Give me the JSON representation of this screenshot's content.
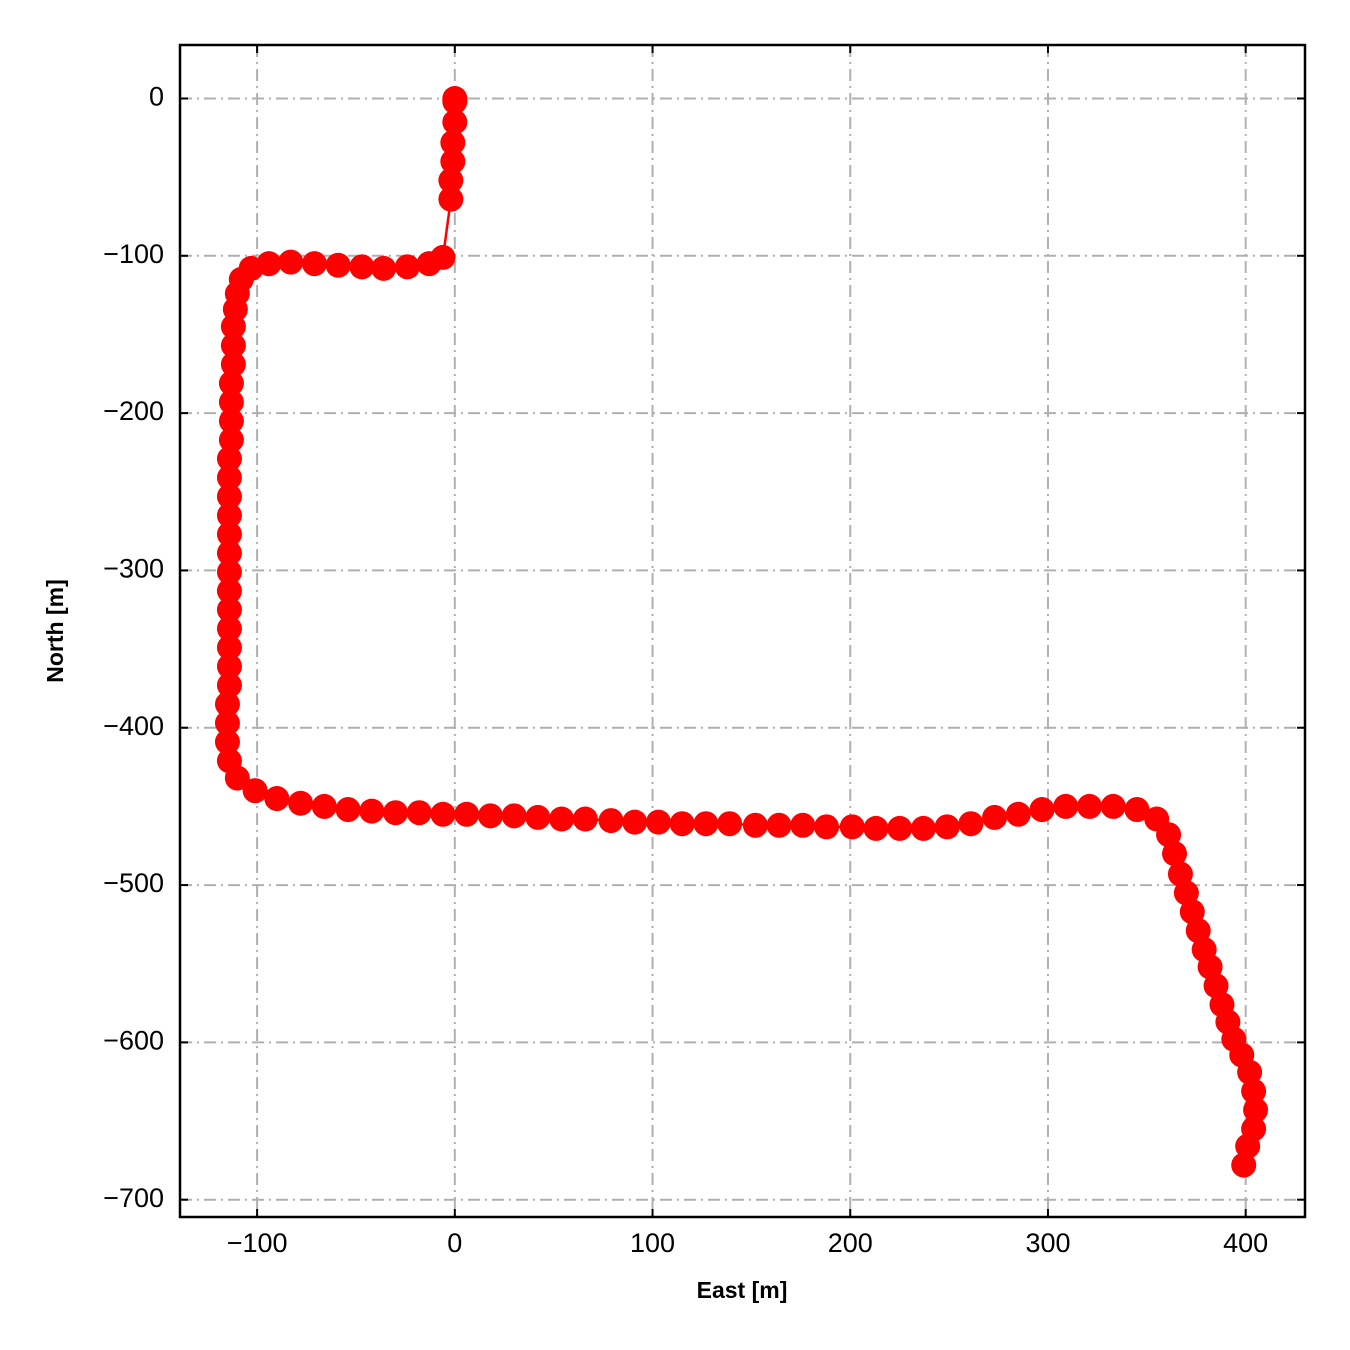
{
  "chart_data": {
    "type": "line",
    "x_label": "East [m]",
    "y_label": "North [m]",
    "color": "#ff0000",
    "grid": true,
    "xlim": [
      -139,
      430
    ],
    "ylim": [
      -711,
      34
    ],
    "xticks": [
      {
        "value": -100,
        "label": "−100"
      },
      0,
      100,
      200,
      300,
      400
    ],
    "yticks": [
      0,
      {
        "value": -100,
        "label": "−100"
      },
      {
        "value": -200,
        "label": "−200"
      },
      {
        "value": -300,
        "label": "−300"
      },
      {
        "value": -400,
        "label": "−400"
      },
      {
        "value": -500,
        "label": "−500"
      },
      {
        "value": -600,
        "label": "−600"
      },
      {
        "value": -700,
        "label": "−700"
      }
    ],
    "x": [
      0,
      0,
      0,
      0,
      -1,
      -1,
      -2,
      -2,
      -6,
      -13,
      -24,
      -36,
      -47,
      -59,
      -71,
      -83,
      -94,
      -103,
      -108,
      -110,
      -111,
      -112,
      -112,
      -112,
      -113,
      -113,
      -113,
      -113,
      -114,
      -114,
      -114,
      -114,
      -114,
      -114,
      -114,
      -114,
      -114,
      -114,
      -114,
      -114,
      -114,
      -115,
      -115,
      -115,
      -114,
      -110,
      -101,
      -90,
      -78,
      -66,
      -54,
      -42,
      -30,
      -18,
      -6,
      6,
      18,
      30,
      42,
      54,
      66,
      79,
      91,
      103,
      115,
      127,
      139,
      152,
      164,
      176,
      188,
      201,
      213,
      225,
      237,
      249,
      261,
      273,
      285,
      297,
      309,
      321,
      333,
      345,
      355,
      361,
      364,
      367,
      370,
      373,
      376,
      379,
      382,
      385,
      388,
      391,
      394,
      398,
      402,
      404,
      405,
      404,
      401,
      399
    ],
    "values": [
      0,
      -1,
      -2,
      -15,
      -28,
      -40,
      -52,
      -64,
      -101,
      -105,
      -107,
      -108,
      -107,
      -106,
      -105,
      -104,
      -105,
      -108,
      -115,
      -124,
      -134,
      -145,
      -157,
      -169,
      -181,
      -193,
      -205,
      -217,
      -229,
      -241,
      -253,
      -265,
      -277,
      -289,
      -301,
      -313,
      -325,
      -337,
      -349,
      -361,
      -373,
      -385,
      -397,
      -409,
      -421,
      -432,
      -440,
      -445,
      -448,
      -450,
      -452,
      -453,
      -454,
      -454,
      -455,
      -455,
      -456,
      -456,
      -457,
      -458,
      -458,
      -459,
      -460,
      -460,
      -461,
      -461,
      -461,
      -462,
      -462,
      -462,
      -463,
      -463,
      -464,
      -464,
      -464,
      -463,
      -461,
      -457,
      -455,
      -452,
      -450,
      -450,
      -450,
      -452,
      -458,
      -468,
      -480,
      -493,
      -505,
      -517,
      -529,
      -541,
      -552,
      -564,
      -576,
      -587,
      -598,
      -608,
      -619,
      -631,
      -643,
      -655,
      -666,
      -678
    ]
  }
}
